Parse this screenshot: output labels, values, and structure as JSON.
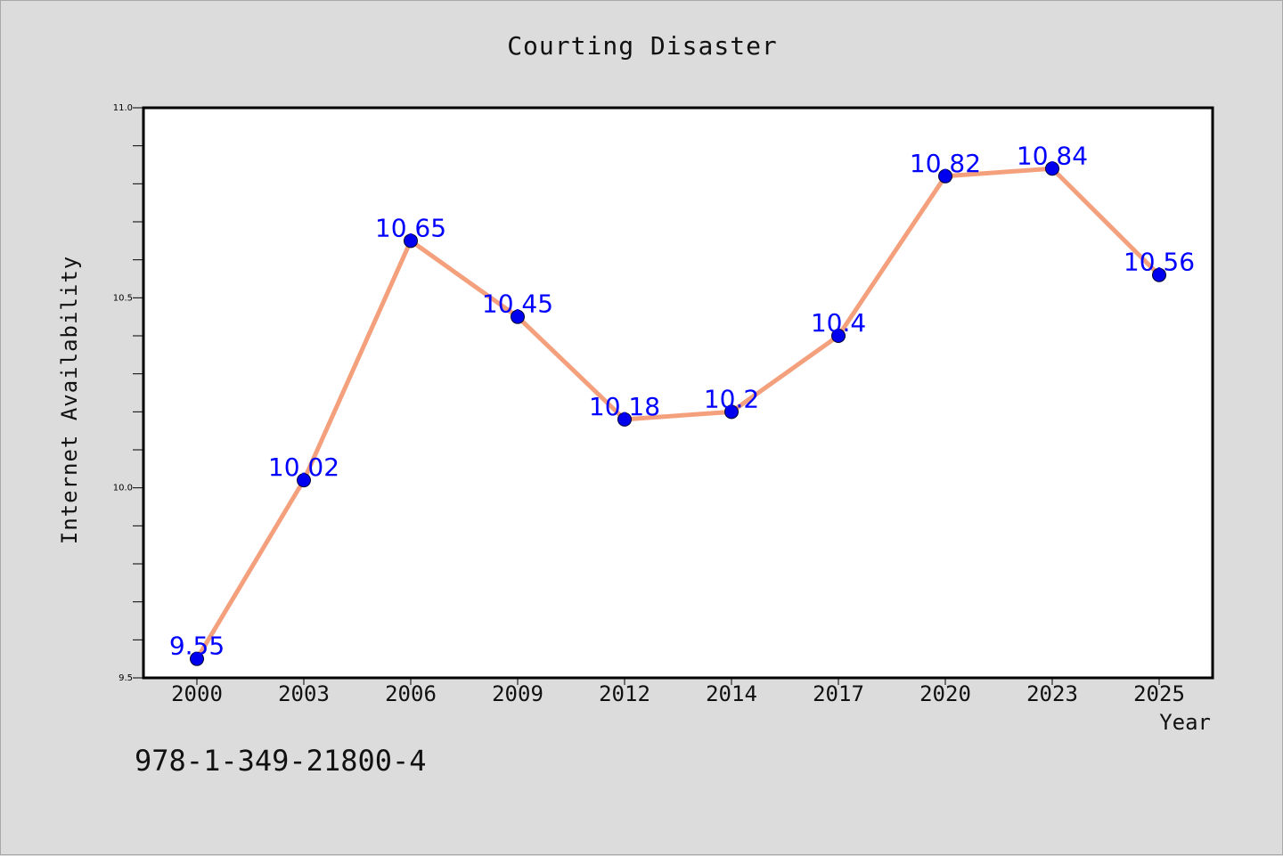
{
  "chart_data": {
    "type": "line",
    "title": "Courting Disaster",
    "xlabel": "Year",
    "ylabel": "Internet Availability",
    "categories": [
      "2000",
      "2003",
      "2006",
      "2009",
      "2012",
      "2014",
      "2017",
      "2020",
      "2023",
      "2025"
    ],
    "values": [
      9.55,
      10.02,
      10.65,
      10.45,
      10.18,
      10.2,
      10.4,
      10.82,
      10.84,
      10.56
    ],
    "data_labels": [
      "9.55",
      "10.02",
      "10.65",
      "10.45",
      "10.18",
      "10.2",
      "10.4",
      "10.82",
      "10.84",
      "10.56"
    ],
    "ylim": [
      9.5,
      11.0
    ],
    "y_ticks": [
      "9.5",
      "10.0",
      "10.5",
      "11.0"
    ],
    "y_tick_values": [
      9.5,
      10.0,
      10.5,
      11.0
    ],
    "y_minor_step": 0.1,
    "grid": false,
    "line_color": "#f4a07c",
    "marker_color": "#0000ee",
    "label_color": "#0000ff",
    "background_color": "#dcdcdc",
    "plot_background": "#ffffff"
  },
  "footer": {
    "isbn": "978-1-349-21800-4"
  }
}
